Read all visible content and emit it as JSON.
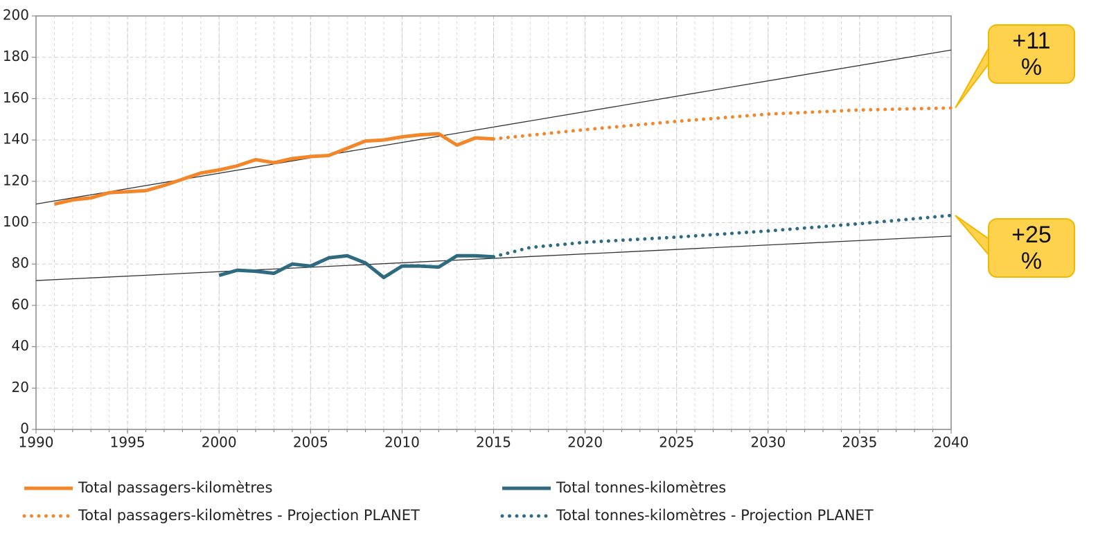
{
  "chart_data": {
    "type": "line",
    "xlim": [
      1990,
      2040
    ],
    "xticks": [
      1990,
      1995,
      2000,
      2005,
      2010,
      2015,
      2020,
      2025,
      2030,
      2035,
      2040
    ],
    "x_minor_step": 1,
    "ylim": [
      0,
      200
    ],
    "yticks": [
      0,
      20,
      40,
      60,
      80,
      100,
      120,
      140,
      160,
      180,
      200
    ],
    "grid": true,
    "legend": "bottom",
    "series": [
      {
        "name": "Total passagers-kilomètres",
        "color": "#f4862a",
        "style": "solid",
        "x": [
          1991,
          1992,
          1993,
          1994,
          1995,
          1996,
          1997,
          1998,
          1999,
          2000,
          2001,
          2002,
          2003,
          2004,
          2005,
          2006,
          2007,
          2008,
          2009,
          2010,
          2011,
          2012,
          2013,
          2014,
          2015
        ],
        "values": [
          109,
          111,
          112,
          114.5,
          115,
          115.5,
          118,
          121,
          124,
          125.5,
          127.5,
          130.5,
          129,
          131,
          132,
          132.5,
          136,
          139.5,
          140,
          141.5,
          142.5,
          143,
          137.5,
          141,
          140.5
        ]
      },
      {
        "name": "Total tonnes-kilomètres",
        "color": "#2e6b80",
        "style": "solid",
        "x": [
          2000,
          2001,
          2002,
          2003,
          2004,
          2005,
          2006,
          2007,
          2008,
          2009,
          2010,
          2011,
          2012,
          2013,
          2014,
          2015
        ],
        "values": [
          74.5,
          77,
          76.5,
          75.5,
          80,
          79,
          83,
          84,
          80.5,
          73.5,
          79,
          79,
          78.5,
          84,
          84,
          83.5
        ]
      },
      {
        "name": "Total passagers-kilomètres - Projection PLANET",
        "color": "#f4862a",
        "style": "dotted",
        "x": [
          2015,
          2020,
          2025,
          2030,
          2035,
          2040
        ],
        "values": [
          140.5,
          145,
          149,
          152.5,
          154.5,
          155.5
        ]
      },
      {
        "name": "Total tonnes-kilomètres - Projection PLANET",
        "color": "#2e6b80",
        "style": "dotted",
        "x": [
          2015,
          2017,
          2020,
          2025,
          2030,
          2035,
          2040
        ],
        "values": [
          83.5,
          88,
          90.5,
          93,
          96,
          99.5,
          103.5
        ]
      }
    ],
    "trendlines": [
      {
        "color": "#333333",
        "x": [
          1990,
          2040
        ],
        "values": [
          109,
          183.5
        ]
      },
      {
        "color": "#333333",
        "x": [
          1990,
          2040
        ],
        "values": [
          72,
          93.5
        ]
      }
    ],
    "annotations": [
      {
        "text": "+11 %",
        "series": 2
      },
      {
        "text": "+25 %",
        "series": 3
      }
    ]
  }
}
